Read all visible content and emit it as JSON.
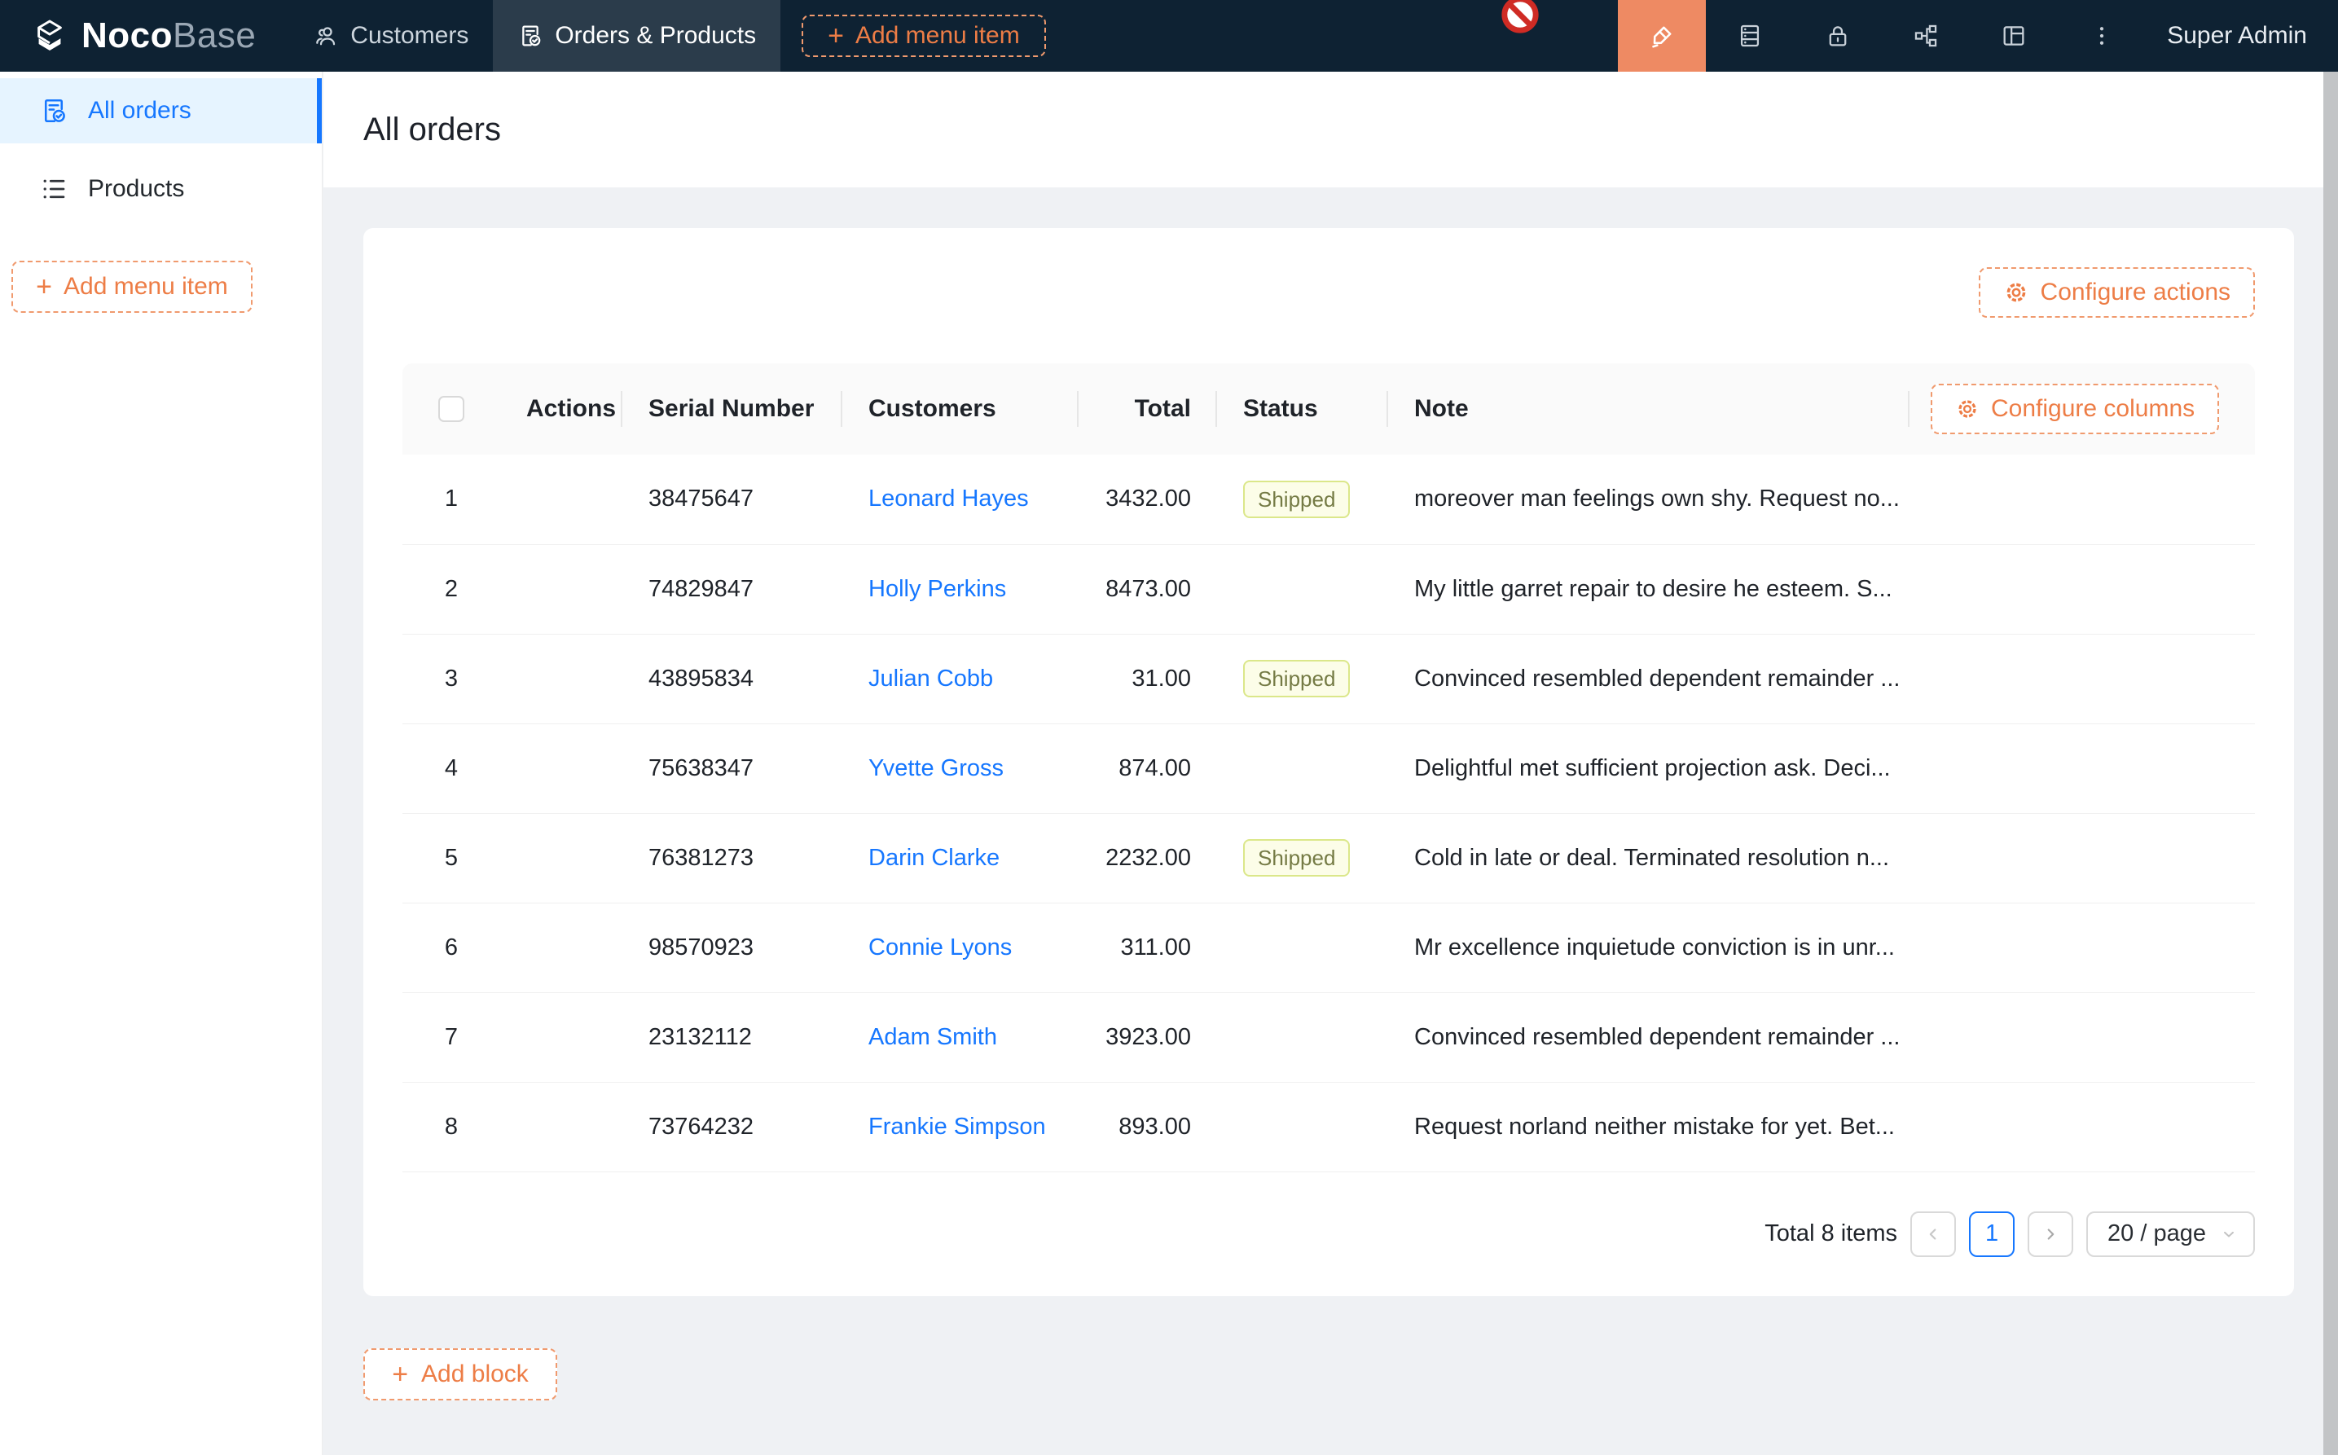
{
  "navbar": {
    "logo_bold": "Noco",
    "logo_light": "Base",
    "menu": [
      {
        "label": "Customers"
      },
      {
        "label": "Orders & Products"
      }
    ],
    "add_menu_item_label": "Add menu item",
    "right_icons": [
      "highlighter-pen",
      "database",
      "lock",
      "workflow",
      "layout",
      "more-options"
    ],
    "user_label": "Super Admin"
  },
  "sidebar": {
    "items": [
      {
        "label": "All orders",
        "active": true
      },
      {
        "label": "Products",
        "active": false
      }
    ],
    "add_menu_item_label": "Add menu item"
  },
  "page": {
    "title": "All orders"
  },
  "toolbar": {
    "configure_actions_label": "Configure actions"
  },
  "table": {
    "columns": [
      "Actions",
      "Serial Number",
      "Customers",
      "Total",
      "Status",
      "Note"
    ],
    "configure_columns_label": "Configure columns",
    "rows": [
      {
        "index": "1",
        "serial": "38475647",
        "customer": "Leonard Hayes",
        "total": "3432.00",
        "status": "Shipped",
        "note": "moreover man feelings own shy. Request no..."
      },
      {
        "index": "2",
        "serial": "74829847",
        "customer": "Holly Perkins",
        "total": "8473.00",
        "status": "",
        "note": "My little garret repair to desire he esteem. S..."
      },
      {
        "index": "3",
        "serial": "43895834",
        "customer": "Julian Cobb",
        "total": "31.00",
        "status": "Shipped",
        "note": "Convinced resembled dependent remainder ..."
      },
      {
        "index": "4",
        "serial": "75638347",
        "customer": "Yvette Gross",
        "total": "874.00",
        "status": "",
        "note": "Delightful met sufficient projection ask. Deci..."
      },
      {
        "index": "5",
        "serial": "76381273",
        "customer": "Darin Clarke",
        "total": "2232.00",
        "status": "Shipped",
        "note": "Cold in late or deal. Terminated resolution n..."
      },
      {
        "index": "6",
        "serial": "98570923",
        "customer": "Connie Lyons",
        "total": "311.00",
        "status": "",
        "note": "Mr excellence inquietude conviction is in unr..."
      },
      {
        "index": "7",
        "serial": "23132112",
        "customer": "Adam Smith",
        "total": "3923.00",
        "status": "",
        "note": "Convinced resembled dependent remainder ..."
      },
      {
        "index": "8",
        "serial": "73764232",
        "customer": "Frankie Simpson",
        "total": "893.00",
        "status": "",
        "note": "Request norland neither mistake for yet. Bet..."
      }
    ]
  },
  "pagination": {
    "total_label": "Total 8 items",
    "current_page": "1",
    "page_size_label": "20 / page"
  },
  "footer": {
    "add_block_label": "Add block"
  },
  "colors": {
    "accent_orange": "#ed7d46",
    "accent_orange_border": "#f09a6e",
    "ui_editor_bg": "#ee8a63",
    "link_blue": "#1677ff",
    "active_item_bg": "#e6f4ff",
    "navbar_bg": "#0e2233",
    "page_bg": "#eff1f4",
    "tag_shipped_bg": "#fcfde8",
    "tag_shipped_border": "#dbe78a",
    "tag_shipped_text": "#757b45"
  }
}
